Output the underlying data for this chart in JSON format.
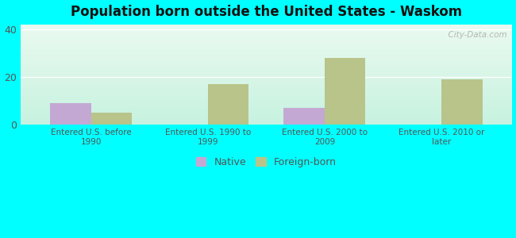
{
  "title": "Population born outside the United States - Waskom",
  "categories": [
    "Entered U.S. before\n1990",
    "Entered U.S. 1990 to\n1999",
    "Entered U.S. 2000 to\n2009",
    "Entered U.S. 2010 or\nlater"
  ],
  "native_values": [
    9,
    0,
    7,
    0
  ],
  "foreign_values": [
    5,
    17,
    28,
    19
  ],
  "native_color": "#c4a8d4",
  "foreign_color": "#b8c48a",
  "ylim": [
    0,
    42
  ],
  "yticks": [
    0,
    20,
    40
  ],
  "bar_width": 0.35,
  "background_outer": "#00ffff",
  "grid_color": "#e8e8e8",
  "axis_label_color": "#555555",
  "title_color": "#111111",
  "legend_labels": [
    "Native",
    "Foreign-born"
  ],
  "watermark": "  City-Data.com"
}
